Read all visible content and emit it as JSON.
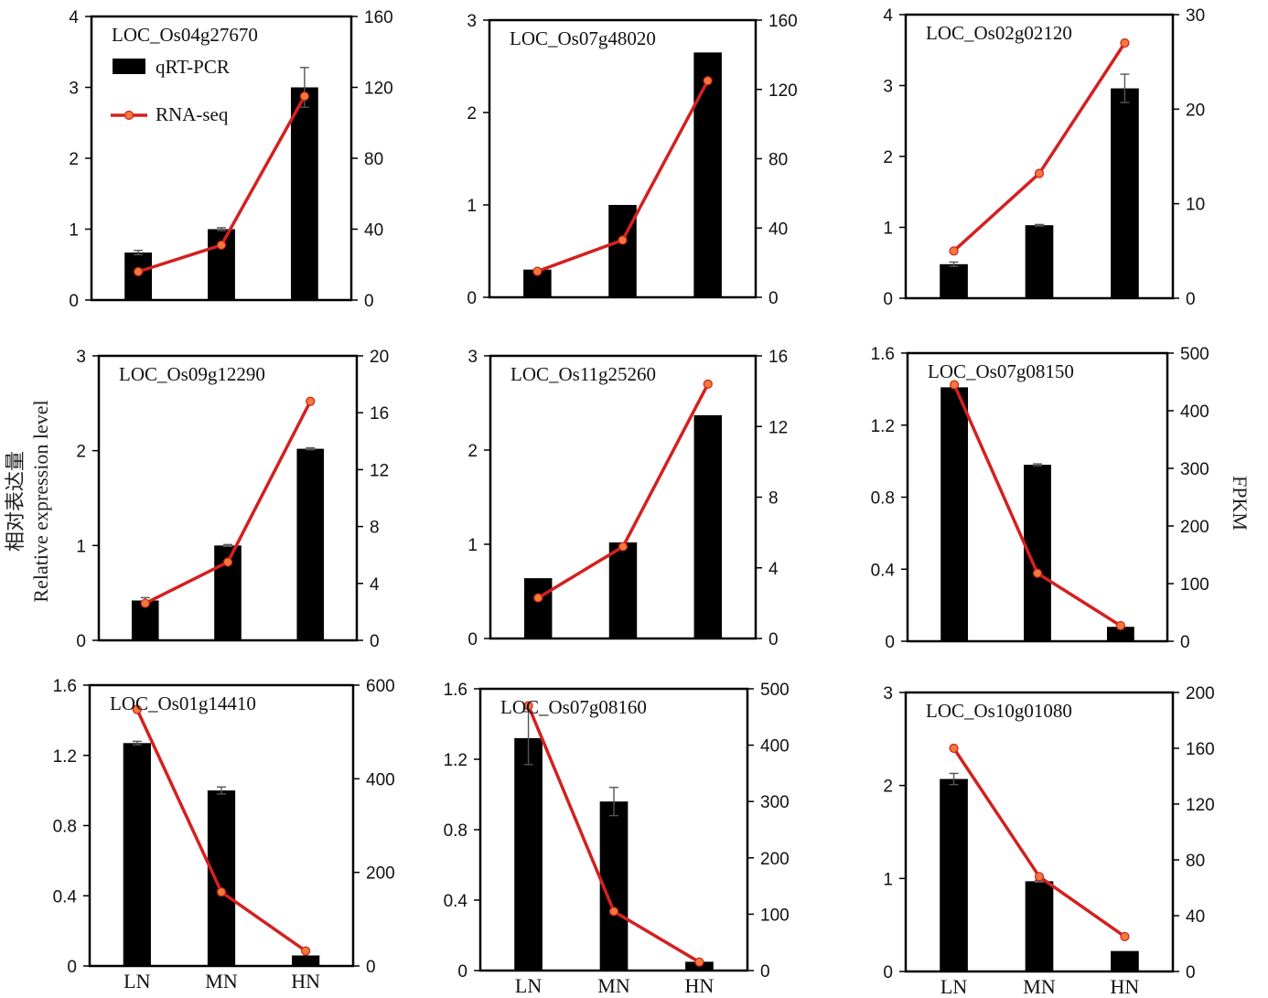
{
  "figure": {
    "ylabel_left_cn": "相对表达量",
    "ylabel_left_en": "Relative expression level",
    "ylabel_right": "FPKM"
  },
  "legend": {
    "bar_label": "qRT-PCR",
    "line_label": "RNA-seq",
    "bar_color": "#000000",
    "line_color": "#d42020",
    "marker_color": "#f07a3a"
  },
  "chart_data": [
    {
      "type": "bar+line",
      "title": "LOC_Os04g27670",
      "categories": [
        "LN",
        "MN",
        "HN"
      ],
      "bar_values": [
        0.67,
        1.0,
        3.0
      ],
      "bar_errors": [
        0.03,
        0.02,
        0.28
      ],
      "line_values": [
        16,
        31,
        115
      ],
      "ylim_left": [
        0,
        4
      ],
      "yticks_left": [
        0,
        1,
        2,
        3,
        4
      ],
      "ylim_right": [
        0,
        160
      ],
      "yticks_right": [
        0,
        40,
        80,
        120,
        160
      ]
    },
    {
      "type": "bar+line",
      "title": "LOC_Os07g48020",
      "categories": [
        "LN",
        "MN",
        "HN"
      ],
      "bar_values": [
        0.3,
        1.0,
        2.65
      ],
      "bar_errors": [
        0,
        0,
        0
      ],
      "line_values": [
        15,
        33,
        125
      ],
      "ylim_left": [
        0,
        3
      ],
      "yticks_left": [
        0,
        1,
        2,
        3
      ],
      "ylim_right": [
        0,
        160
      ],
      "yticks_right": [
        0,
        40,
        80,
        120,
        160
      ]
    },
    {
      "type": "bar+line",
      "title": "LOC_Os02g02120",
      "categories": [
        "LN",
        "MN",
        "HN"
      ],
      "bar_values": [
        0.48,
        1.03,
        2.96
      ],
      "bar_errors": [
        0.03,
        0.01,
        0.2
      ],
      "line_values": [
        5,
        13.2,
        27
      ],
      "ylim_left": [
        0,
        4
      ],
      "yticks_left": [
        0,
        1,
        2,
        3,
        4
      ],
      "ylim_right": [
        0,
        30
      ],
      "yticks_right": [
        0,
        10,
        20,
        30
      ]
    },
    {
      "type": "bar+line",
      "title": "LOC_Os09g12290",
      "categories": [
        "LN",
        "MN",
        "HN"
      ],
      "bar_values": [
        0.42,
        1.0,
        2.02
      ],
      "bar_errors": [
        0.03,
        0.01,
        0.01
      ],
      "line_values": [
        2.6,
        5.5,
        16.8
      ],
      "ylim_left": [
        0,
        3
      ],
      "yticks_left": [
        0,
        1,
        2,
        3
      ],
      "ylim_right": [
        0,
        20
      ],
      "yticks_right": [
        0,
        4,
        8,
        12,
        16,
        20
      ]
    },
    {
      "type": "bar+line",
      "title": "LOC_Os11g25260",
      "categories": [
        "LN",
        "MN",
        "HN"
      ],
      "bar_values": [
        0.64,
        1.02,
        2.37
      ],
      "bar_errors": [
        0,
        0,
        0
      ],
      "line_values": [
        2.3,
        5.2,
        14.4
      ],
      "ylim_left": [
        0,
        3
      ],
      "yticks_left": [
        0,
        1,
        2,
        3
      ],
      "ylim_right": [
        0,
        16
      ],
      "yticks_right": [
        0,
        4,
        8,
        12,
        16
      ]
    },
    {
      "type": "bar+line",
      "title": "LOC_Os07g08150",
      "categories": [
        "LN",
        "MN",
        "HN"
      ],
      "bar_values": [
        1.41,
        0.98,
        0.08
      ],
      "bar_errors": [
        0,
        0.005,
        0
      ],
      "line_values": [
        445,
        118,
        27
      ],
      "ylim_left": [
        0,
        1.6
      ],
      "yticks_left": [
        0,
        0.4,
        0.8,
        1.2,
        1.6
      ],
      "ylim_right": [
        0,
        500
      ],
      "yticks_right": [
        0,
        100,
        200,
        300,
        400,
        500
      ]
    },
    {
      "type": "bar+line",
      "title": "LOC_Os01g14410",
      "categories": [
        "LN",
        "MN",
        "HN"
      ],
      "bar_values": [
        1.27,
        1.0,
        0.06
      ],
      "bar_errors": [
        0.01,
        0.02,
        0
      ],
      "line_values": [
        548,
        158,
        32
      ],
      "ylim_left": [
        0,
        1.6
      ],
      "yticks_left": [
        0,
        0.4,
        0.8,
        1.2,
        1.6
      ],
      "ylim_right": [
        0,
        600
      ],
      "yticks_right": [
        0,
        200,
        400,
        600
      ]
    },
    {
      "type": "bar+line",
      "title": "LOC_Os07g08160",
      "categories": [
        "LN",
        "MN",
        "HN"
      ],
      "bar_values": [
        1.32,
        0.96,
        0.05
      ],
      "bar_errors": [
        0.15,
        0.08,
        0
      ],
      "line_values": [
        470,
        105,
        15
      ],
      "ylim_left": [
        0,
        1.6
      ],
      "yticks_left": [
        0,
        0.4,
        0.8,
        1.2,
        1.6
      ],
      "ylim_right": [
        0,
        500
      ],
      "yticks_right": [
        0,
        100,
        200,
        300,
        400,
        500
      ]
    },
    {
      "type": "bar+line",
      "title": "LOC_Os10g01080",
      "categories": [
        "LN",
        "MN",
        "HN"
      ],
      "bar_values": [
        2.07,
        0.97,
        0.22
      ],
      "bar_errors": [
        0.06,
        0.01,
        0
      ],
      "line_values": [
        160,
        68,
        25
      ],
      "ylim_left": [
        0,
        3
      ],
      "yticks_left": [
        0,
        1,
        2,
        3
      ],
      "ylim_right": [
        0,
        200
      ],
      "yticks_right": [
        0,
        40,
        80,
        120,
        160,
        200
      ]
    }
  ]
}
